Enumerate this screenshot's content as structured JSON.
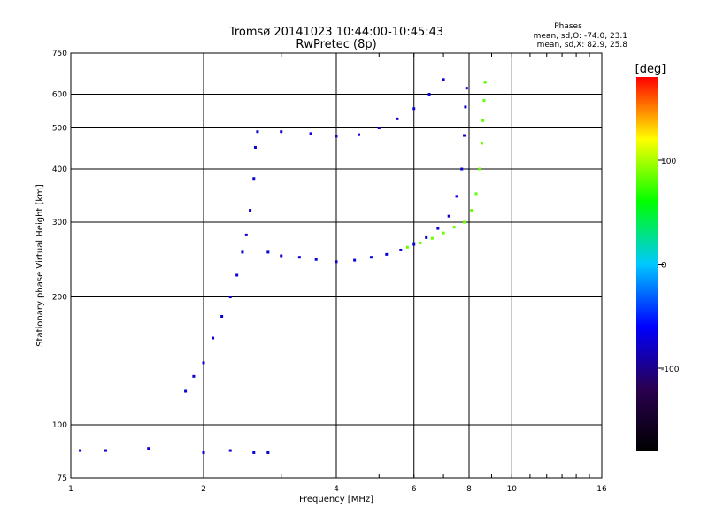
{
  "title_line1": "Tromsø 20141023 10:44:00-10:45:43",
  "title_line2": "RwPretec (8p)",
  "phases": {
    "header": "Phases",
    "line_o": "mean, sd,O: -74.0, 23.1",
    "line_x": "mean, sd,X: 82.9, 25.8"
  },
  "colorbar": {
    "unit_label": "[deg]",
    "ticks": [
      "100",
      "0",
      "-100"
    ],
    "tick_values": [
      100,
      0,
      -100
    ],
    "range": [
      -180,
      180
    ],
    "colors": [
      "#000000",
      "#2a0050",
      "#0000ff",
      "#00c8ff",
      "#00ff00",
      "#ffff00",
      "#ff0000"
    ]
  },
  "chart_data": {
    "type": "scatter",
    "xlabel": "Frequency [MHz]",
    "ylabel": "Stationary phase Virtual Height [km]",
    "xscale": "log",
    "yscale": "log",
    "xlim": [
      1,
      16
    ],
    "ylim": [
      75,
      750
    ],
    "xticks": [
      1,
      2,
      4,
      6,
      8,
      10,
      16
    ],
    "xtick_labels": [
      "1",
      "2",
      "4",
      "6",
      "8",
      "10",
      "16"
    ],
    "yticks": [
      75,
      100,
      200,
      300,
      400,
      500,
      600,
      750
    ],
    "ytick_labels": [
      "75",
      "100",
      "200",
      "300",
      "400",
      "500",
      "600",
      "750"
    ],
    "grid": true,
    "series": [
      {
        "name": "O",
        "color_value": -74,
        "points": [
          [
            1.82,
            120
          ],
          [
            1.9,
            130
          ],
          [
            2.0,
            140
          ],
          [
            2.1,
            160
          ],
          [
            2.2,
            180
          ],
          [
            2.3,
            200
          ],
          [
            2.38,
            225
          ],
          [
            2.45,
            255
          ],
          [
            2.5,
            280
          ],
          [
            2.55,
            320
          ],
          [
            2.6,
            380
          ],
          [
            2.62,
            450
          ],
          [
            2.65,
            490
          ],
          [
            2.8,
            255
          ],
          [
            3.0,
            250
          ],
          [
            3.3,
            248
          ],
          [
            3.6,
            245
          ],
          [
            4.0,
            242
          ],
          [
            4.4,
            244
          ],
          [
            4.8,
            248
          ],
          [
            5.2,
            252
          ],
          [
            5.6,
            258
          ],
          [
            6.0,
            266
          ],
          [
            6.4,
            276
          ],
          [
            6.8,
            290
          ],
          [
            7.2,
            310
          ],
          [
            7.5,
            345
          ],
          [
            7.7,
            400
          ],
          [
            7.8,
            480
          ],
          [
            7.85,
            560
          ],
          [
            7.9,
            620
          ],
          [
            3.0,
            490
          ],
          [
            3.5,
            485
          ],
          [
            4.0,
            478
          ],
          [
            4.5,
            482
          ],
          [
            5.0,
            500
          ],
          [
            5.5,
            525
          ],
          [
            6.0,
            555
          ],
          [
            6.5,
            600
          ],
          [
            7.0,
            650
          ],
          [
            1.05,
            87
          ],
          [
            1.2,
            87
          ],
          [
            1.5,
            88
          ],
          [
            2.0,
            86
          ],
          [
            2.3,
            87
          ],
          [
            2.6,
            86
          ],
          [
            2.8,
            86
          ]
        ]
      },
      {
        "name": "X",
        "color_value": 83,
        "points": [
          [
            5.8,
            262
          ],
          [
            6.2,
            268
          ],
          [
            6.6,
            275
          ],
          [
            7.0,
            283
          ],
          [
            7.4,
            292
          ],
          [
            7.8,
            300
          ],
          [
            8.1,
            320
          ],
          [
            8.3,
            350
          ],
          [
            8.45,
            400
          ],
          [
            8.55,
            460
          ],
          [
            8.6,
            520
          ],
          [
            8.65,
            580
          ],
          [
            8.7,
            640
          ]
        ]
      }
    ]
  }
}
